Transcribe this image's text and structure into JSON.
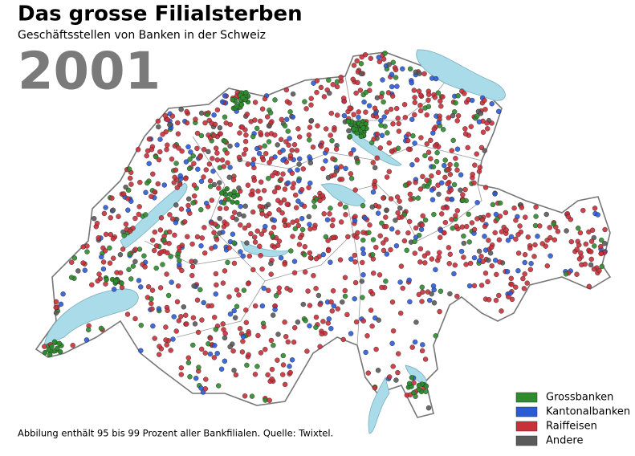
{
  "header": {
    "title": "Das grosse Filialsterben",
    "subtitle": "Geschäftsstellen von Banken in der Schweiz",
    "year": "2001"
  },
  "legend": [
    {
      "label": "Grossbanken",
      "color": "#2e8b2e"
    },
    {
      "label": "Kantonalbanken",
      "color": "#2a5bd7"
    },
    {
      "label": "Raiffeisen",
      "color": "#c8303a"
    },
    {
      "label": "Andere",
      "color": "#5a5a5a"
    }
  ],
  "footnote": "Abbilung enthält 95 bis 99 Prozent aller Bankfilialen. Quelle: Twixtel."
}
